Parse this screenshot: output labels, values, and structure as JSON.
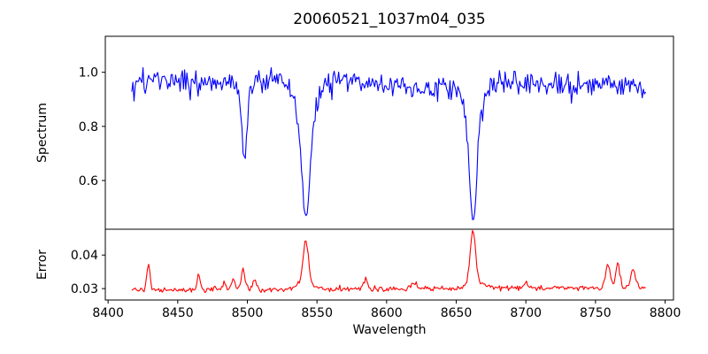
{
  "figure": {
    "background": "#ffffff",
    "text_color": "#000000",
    "spine_color": "#000000"
  },
  "chart_data": {
    "type": "line",
    "title": "20060521_1037m04_035",
    "xlabel": "Wavelength",
    "legend": "none",
    "grid": false,
    "x_range": [
      8398,
      8806
    ],
    "x_ticks": [
      {
        "value": 8400,
        "label": "8400"
      },
      {
        "value": 8450,
        "label": "8450"
      },
      {
        "value": 8500,
        "label": "8500"
      },
      {
        "value": 8550,
        "label": "8550"
      },
      {
        "value": 8600,
        "label": "8600"
      },
      {
        "value": 8650,
        "label": "8650"
      },
      {
        "value": 8700,
        "label": "8700"
      },
      {
        "value": 8750,
        "label": "8750"
      },
      {
        "value": 8800,
        "label": "8800"
      }
    ],
    "data_x_start": 8417,
    "data_x_end": 8786,
    "n_points": 458,
    "panels": [
      {
        "name": "spectrum",
        "ylabel": "Spectrum",
        "line_color": "#0000ff",
        "y_range": [
          0.42,
          1.133
        ],
        "y_ticks": [
          {
            "value": 0.6,
            "label": "0.6"
          },
          {
            "value": 0.8,
            "label": "0.8"
          },
          {
            "value": 1.0,
            "label": "1.0"
          }
        ],
        "continuum_level": 0.962,
        "noise_amplitude": 0.052,
        "seed": 20060521,
        "absorption_lines": [
          {
            "center": 8498,
            "min_flux": 0.66,
            "core_depth": 0.26,
            "core_sigma": 1.5,
            "wing_depth": 0.05,
            "wing_sigma": 4
          },
          {
            "center": 8542,
            "min_flux": 0.46,
            "core_depth": 0.36,
            "core_sigma": 2.8,
            "wing_depth": 0.16,
            "wing_sigma": 7
          },
          {
            "center": 8662,
            "min_flux": 0.45,
            "core_depth": 0.4,
            "core_sigma": 2.5,
            "wing_depth": 0.13,
            "wing_sigma": 6
          }
        ]
      },
      {
        "name": "error",
        "ylabel": "Error",
        "line_color": "#ff0000",
        "y_range": [
          0.0266,
          0.0477
        ],
        "y_ticks": [
          {
            "value": 0.03,
            "label": "0.03"
          },
          {
            "value": 0.04,
            "label": "0.04"
          }
        ],
        "baseline": 0.0295,
        "baseline_slope": 2.2e-06,
        "noise_amplitude": 0.0009,
        "seed": 1037,
        "peaks": [
          {
            "center": 8429,
            "amplitude": 0.0078,
            "sigma": 1.1
          },
          {
            "center": 8465,
            "amplitude": 0.0045,
            "sigma": 1.1
          },
          {
            "center": 8483,
            "amplitude": 0.002,
            "sigma": 1.2
          },
          {
            "center": 8490,
            "amplitude": 0.003,
            "sigma": 1.3
          },
          {
            "center": 8497,
            "amplitude": 0.0058,
            "sigma": 1.4
          },
          {
            "center": 8505,
            "amplitude": 0.0028,
            "sigma": 1.2
          },
          {
            "center": 8542,
            "amplitude": 0.0125,
            "sigma": 1.9
          },
          {
            "center": 8542,
            "amplitude": 0.0018,
            "sigma": 6.0
          },
          {
            "center": 8585,
            "amplitude": 0.0026,
            "sigma": 1.6
          },
          {
            "center": 8620,
            "amplitude": 0.0018,
            "sigma": 1.5
          },
          {
            "center": 8662,
            "amplitude": 0.0155,
            "sigma": 1.9
          },
          {
            "center": 8664,
            "amplitude": 0.002,
            "sigma": 6.0
          },
          {
            "center": 8700,
            "amplitude": 0.0015,
            "sigma": 1.5
          },
          {
            "center": 8759,
            "amplitude": 0.007,
            "sigma": 1.7
          },
          {
            "center": 8766,
            "amplitude": 0.0075,
            "sigma": 1.4
          },
          {
            "center": 8777,
            "amplitude": 0.0055,
            "sigma": 1.7
          }
        ]
      }
    ]
  }
}
